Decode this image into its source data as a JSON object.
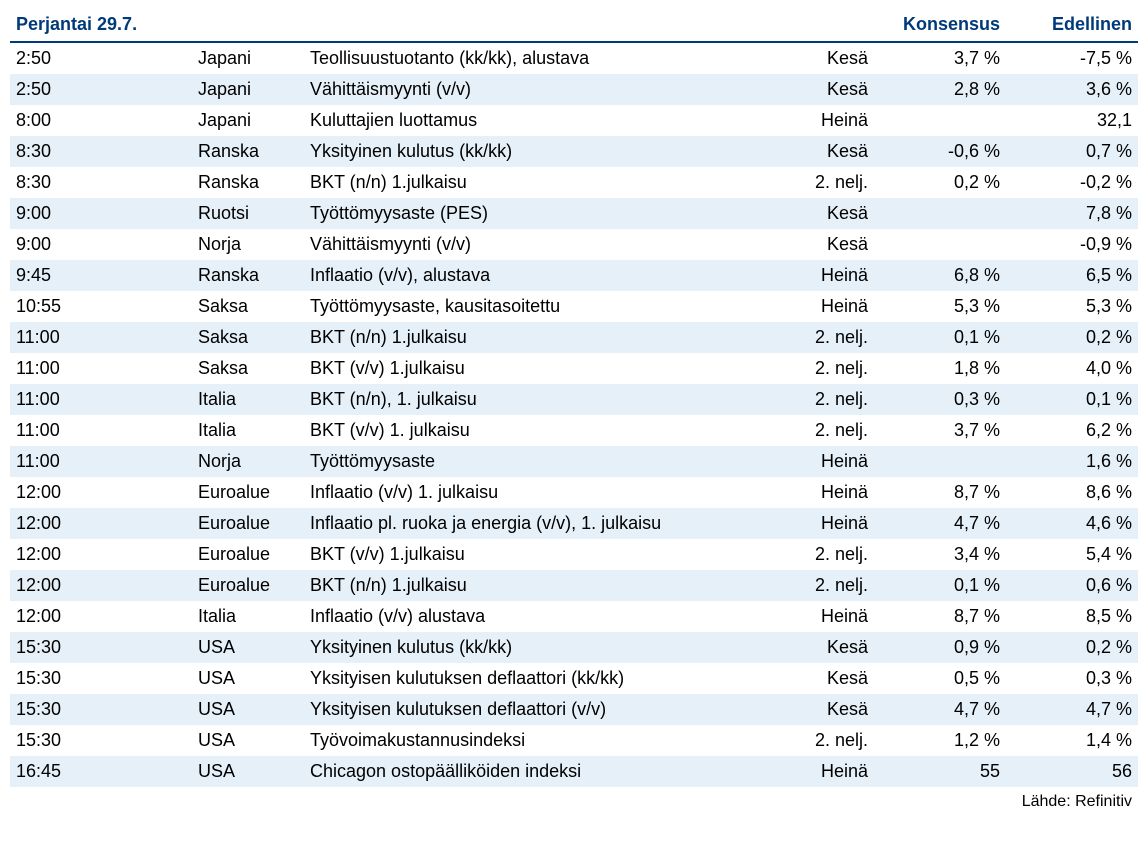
{
  "header": {
    "title": "Perjantai 29.7.",
    "consensus": "Konsensus",
    "previous": "Edellinen"
  },
  "source": "Lähde: Refinitiv",
  "colors": {
    "header_text": "#003a7a",
    "row_alt_bg": "#e6f0f8",
    "text": "#000000",
    "bg": "#ffffff"
  },
  "columns": [
    "time",
    "country",
    "event",
    "period",
    "consensus",
    "previous"
  ],
  "rows": [
    {
      "time": "2:50",
      "country": "Japani",
      "event": "Teollisuustuotanto (kk/kk), alustava",
      "period": "Kesä",
      "consensus": "3,7 %",
      "previous": "-7,5 %"
    },
    {
      "time": "2:50",
      "country": "Japani",
      "event": "Vähittäismyynti (v/v)",
      "period": "Kesä",
      "consensus": "2,8 %",
      "previous": "3,6 %"
    },
    {
      "time": "8:00",
      "country": "Japani",
      "event": "Kuluttajien luottamus",
      "period": "Heinä",
      "consensus": "",
      "previous": "32,1"
    },
    {
      "time": "8:30",
      "country": "Ranska",
      "event": "Yksityinen kulutus (kk/kk)",
      "period": "Kesä",
      "consensus": "-0,6 %",
      "previous": "0,7 %"
    },
    {
      "time": "8:30",
      "country": "Ranska",
      "event": "BKT (n/n) 1.julkaisu",
      "period": "2. nelj.",
      "consensus": "0,2 %",
      "previous": "-0,2 %"
    },
    {
      "time": "9:00",
      "country": "Ruotsi",
      "event": "Työttömyysaste (PES)",
      "period": "Kesä",
      "consensus": "",
      "previous": "7,8 %"
    },
    {
      "time": "9:00",
      "country": "Norja",
      "event": "Vähittäismyynti (v/v)",
      "period": "Kesä",
      "consensus": "",
      "previous": "-0,9 %"
    },
    {
      "time": "9:45",
      "country": "Ranska",
      "event": "Inflaatio (v/v), alustava",
      "period": "Heinä",
      "consensus": "6,8 %",
      "previous": "6,5 %"
    },
    {
      "time": "10:55",
      "country": "Saksa",
      "event": "Työttömyysaste, kausitasoitettu",
      "period": "Heinä",
      "consensus": "5,3 %",
      "previous": "5,3 %"
    },
    {
      "time": "11:00",
      "country": "Saksa",
      "event": "BKT (n/n) 1.julkaisu",
      "period": "2. nelj.",
      "consensus": "0,1 %",
      "previous": "0,2 %"
    },
    {
      "time": "11:00",
      "country": "Saksa",
      "event": "BKT (v/v) 1.julkaisu",
      "period": "2. nelj.",
      "consensus": "1,8 %",
      "previous": "4,0 %"
    },
    {
      "time": "11:00",
      "country": "Italia",
      "event": "BKT (n/n), 1. julkaisu",
      "period": "2. nelj.",
      "consensus": "0,3 %",
      "previous": "0,1 %"
    },
    {
      "time": "11:00",
      "country": "Italia",
      "event": "BKT (v/v) 1. julkaisu",
      "period": "2. nelj.",
      "consensus": "3,7 %",
      "previous": "6,2 %"
    },
    {
      "time": "11:00",
      "country": "Norja",
      "event": "Työttömyysaste",
      "period": "Heinä",
      "consensus": "",
      "previous": "1,6 %"
    },
    {
      "time": "12:00",
      "country": "Euroalue",
      "event": "Inflaatio (v/v) 1. julkaisu",
      "period": "Heinä",
      "consensus": "8,7 %",
      "previous": "8,6 %"
    },
    {
      "time": "12:00",
      "country": "Euroalue",
      "event": "Inflaatio pl. ruoka ja energia (v/v), 1. julkaisu",
      "period": "Heinä",
      "consensus": "4,7 %",
      "previous": "4,6 %"
    },
    {
      "time": "12:00",
      "country": "Euroalue",
      "event": "BKT (v/v) 1.julkaisu",
      "period": "2. nelj.",
      "consensus": "3,4 %",
      "previous": "5,4 %"
    },
    {
      "time": "12:00",
      "country": "Euroalue",
      "event": "BKT (n/n) 1.julkaisu",
      "period": "2. nelj.",
      "consensus": "0,1 %",
      "previous": "0,6 %"
    },
    {
      "time": "12:00",
      "country": "Italia",
      "event": "Inflaatio (v/v) alustava",
      "period": "Heinä",
      "consensus": "8,7 %",
      "previous": "8,5 %"
    },
    {
      "time": "15:30",
      "country": "USA",
      "event": "Yksityinen kulutus (kk/kk)",
      "period": "Kesä",
      "consensus": "0,9 %",
      "previous": "0,2 %"
    },
    {
      "time": "15:30",
      "country": "USA",
      "event": "Yksityisen kulutuksen deflaattori (kk/kk)",
      "period": "Kesä",
      "consensus": "0,5 %",
      "previous": "0,3 %"
    },
    {
      "time": "15:30",
      "country": "USA",
      "event": "Yksityisen kulutuksen deflaattori (v/v)",
      "period": "Kesä",
      "consensus": "4,7 %",
      "previous": "4,7 %"
    },
    {
      "time": "15:30",
      "country": "USA",
      "event": "Työvoimakustannusindeksi",
      "period": "2. nelj.",
      "consensus": "1,2 %",
      "previous": "1,4 %"
    },
    {
      "time": "16:45",
      "country": "USA",
      "event": "Chicagon ostopäälliköiden indeksi",
      "period": "Heinä",
      "consensus": "55",
      "previous": "56"
    }
  ]
}
